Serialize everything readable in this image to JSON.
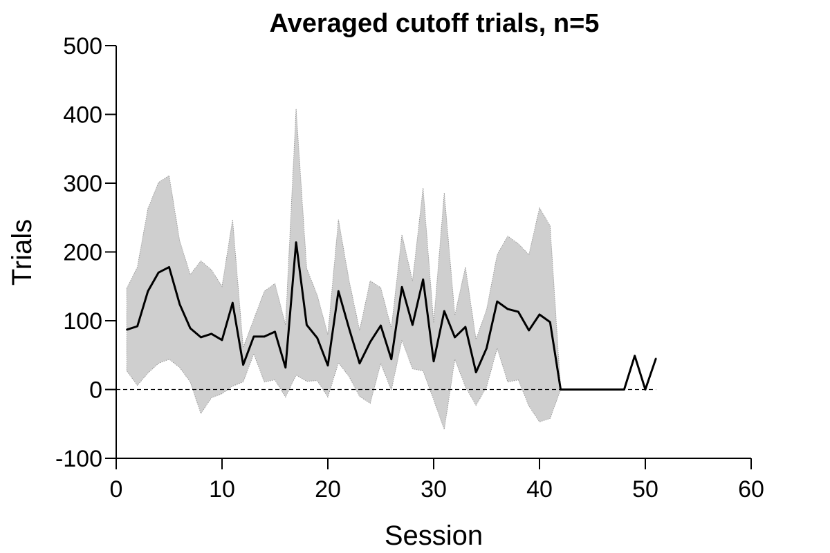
{
  "chart_data": {
    "type": "line",
    "title": "Averaged cutoff trials, n=5",
    "xlabel": "Session",
    "ylabel": "Trials",
    "xlim": [
      0,
      60
    ],
    "ylim": [
      -100,
      500
    ],
    "xticks": [
      0,
      10,
      20,
      30,
      40,
      50,
      60
    ],
    "yticks": [
      -100,
      0,
      100,
      200,
      300,
      400,
      500
    ],
    "x_tick_labels": [
      "0",
      "10",
      "20",
      "30",
      "40",
      "50",
      "60"
    ],
    "y_tick_labels": [
      "-100",
      "0",
      "100",
      "200",
      "300",
      "400",
      "500"
    ],
    "grid": false,
    "legend": "none",
    "reference_line": {
      "y": 0,
      "style": "dashed",
      "x_range": [
        0,
        51
      ]
    },
    "series": [
      {
        "x": [
          1,
          2,
          3,
          4,
          5,
          6,
          7,
          8,
          9,
          10,
          11,
          12,
          13,
          14,
          15,
          16,
          17,
          18,
          19,
          20,
          21,
          22,
          23,
          24,
          25,
          26,
          27,
          28,
          29,
          30,
          31,
          32,
          33,
          34,
          35,
          36,
          37,
          38,
          39,
          40,
          41,
          42,
          43,
          44,
          45,
          46,
          47,
          48,
          49,
          50,
          51
        ],
        "mean": [
          87,
          92,
          143,
          170,
          178,
          124,
          89,
          76,
          81,
          72,
          126,
          36,
          77,
          77,
          84,
          32,
          214,
          94,
          75,
          35,
          143,
          89,
          38,
          69,
          93,
          44,
          149,
          94,
          160,
          41,
          114,
          76,
          91,
          25,
          60,
          128,
          117,
          113,
          86,
          109,
          98,
          0,
          0,
          0,
          0,
          0,
          0,
          0,
          49,
          0,
          45
        ],
        "band_upper": [
          147,
          178,
          263,
          301,
          311,
          216,
          167,
          187,
          174,
          150,
          247,
          61,
          102,
          143,
          154,
          94,
          408,
          176,
          137,
          80,
          247,
          159,
          86,
          158,
          148,
          89,
          225,
          158,
          293,
          97,
          286,
          108,
          178,
          73,
          116,
          196,
          223,
          212,
          196,
          264,
          238,
          0,
          0,
          0,
          0,
          0,
          0,
          0,
          null,
          null,
          null
        ],
        "band_lower": [
          27,
          6,
          24,
          38,
          44,
          32,
          11,
          -35,
          -12,
          -6,
          5,
          11,
          52,
          11,
          14,
          -11,
          21,
          12,
          13,
          -11,
          39,
          19,
          -10,
          -20,
          38,
          -1,
          72,
          30,
          27,
          -15,
          -58,
          44,
          4,
          -23,
          4,
          60,
          11,
          14,
          -24,
          -47,
          -42,
          0,
          0,
          0,
          0,
          0,
          0,
          0,
          null,
          null,
          null
        ]
      }
    ],
    "colors": {
      "line": "#000000",
      "band": "#cfcfcf",
      "band_edge": "#9a9a9a",
      "axis": "#000000"
    }
  }
}
